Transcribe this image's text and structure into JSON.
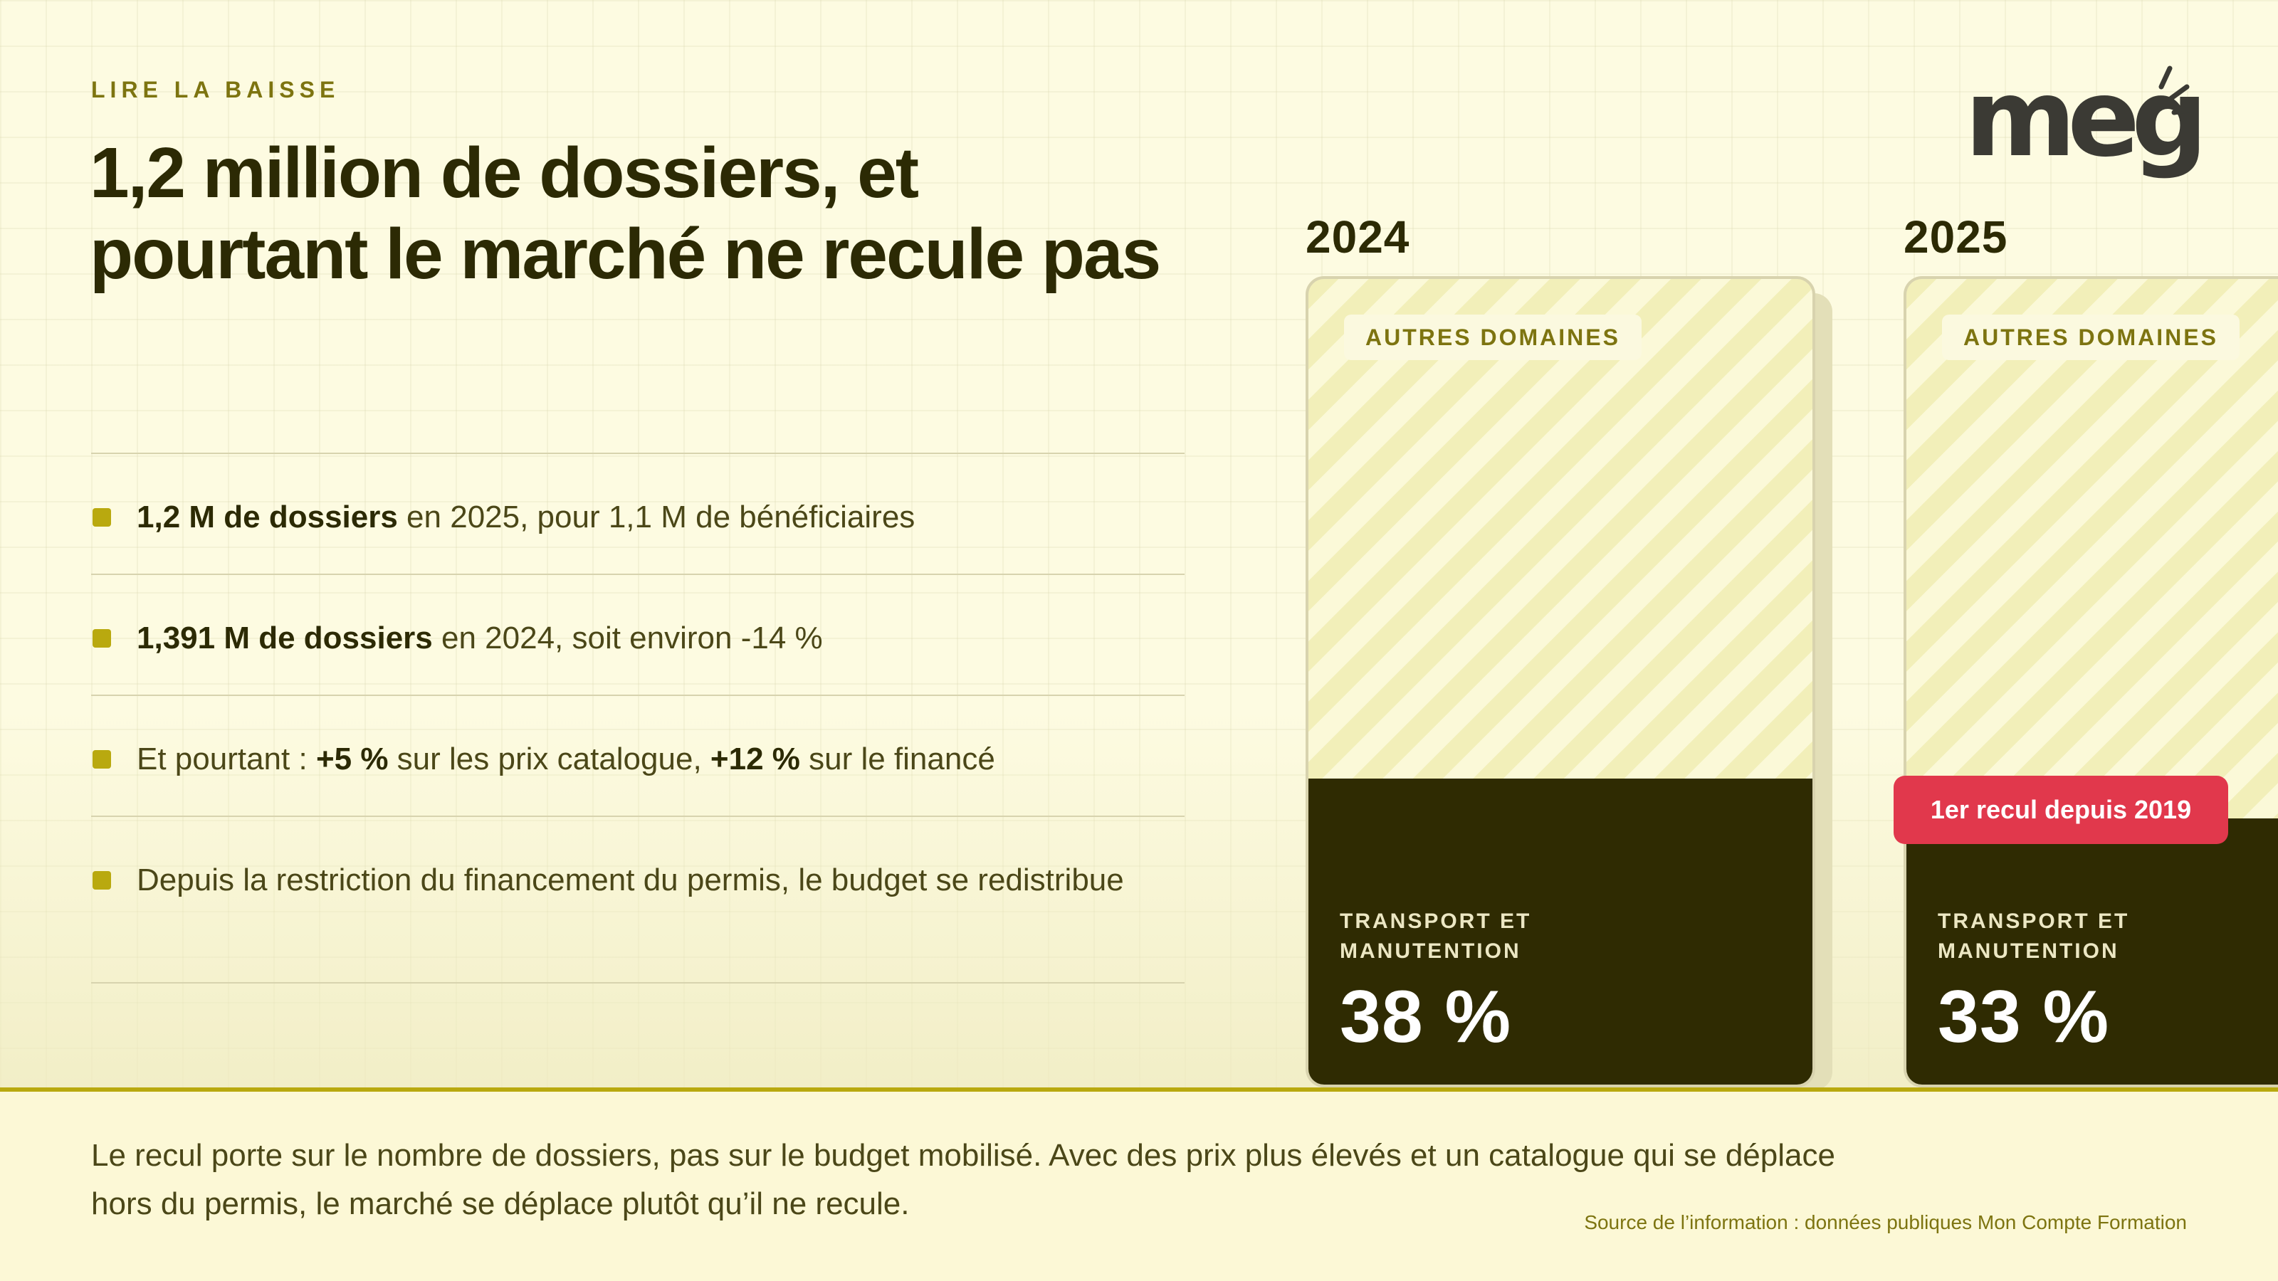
{
  "header": {
    "eyebrow": "LIRE LA BAISSE",
    "title_line1": "1,2 million de dossiers, et",
    "title_line2": "pourtant le marché ne recule pas"
  },
  "logo": {
    "text": "meg"
  },
  "bullets": [
    {
      "parts": [
        {
          "text": "1,2 M de dossiers",
          "bold": true
        },
        {
          "text": " en 2025, pour 1,1 M de bénéficiaires",
          "bold": false
        }
      ]
    },
    {
      "parts": [
        {
          "text": "1,391 M de dossiers",
          "bold": true
        },
        {
          "text": " en 2024, soit environ -14 %",
          "bold": false
        }
      ]
    },
    {
      "parts": [
        {
          "text": "Et pourtant : ",
          "bold": false
        },
        {
          "text": "+5 %",
          "bold": true
        },
        {
          "text": " sur les prix catalogue, ",
          "bold": false
        },
        {
          "text": "+12 %",
          "bold": true
        },
        {
          "text": " sur le financé",
          "bold": false
        }
      ]
    },
    {
      "parts": [
        {
          "text": "Depuis la restriction du financement du permis, le budget se redistribue",
          "bold": false
        }
      ]
    }
  ],
  "chart_data": {
    "type": "bar",
    "stacked": true,
    "categories": [
      "2024",
      "2025"
    ],
    "series": [
      {
        "name": "TRANSPORT ET MANUTENTION",
        "values": [
          38,
          33
        ],
        "value_labels": [
          "38 %",
          "33 %"
        ],
        "color": "#2f2b02"
      },
      {
        "name": "AUTRES DOMAINES",
        "values": [
          62,
          67
        ],
        "color": "#f2efb9"
      }
    ],
    "ylim": [
      0,
      100
    ],
    "annotations": [
      {
        "category": "2025",
        "text": "1er recul depuis 2019",
        "color": "#e1384c"
      }
    ]
  },
  "footer": {
    "text": "Le recul porte sur le nombre de dossiers, pas sur le budget mobilisé. Avec des prix plus élevés et un catalogue qui se déplace hors du permis, le marché se déplace plutôt qu’il ne recule.",
    "source": "Source de l’information : données publiques Mon Compte Formation"
  },
  "colors": {
    "background": "#fdfbe1",
    "accent": "#b9a90f",
    "dark": "#2f2b02",
    "alert": "#e1384c"
  }
}
